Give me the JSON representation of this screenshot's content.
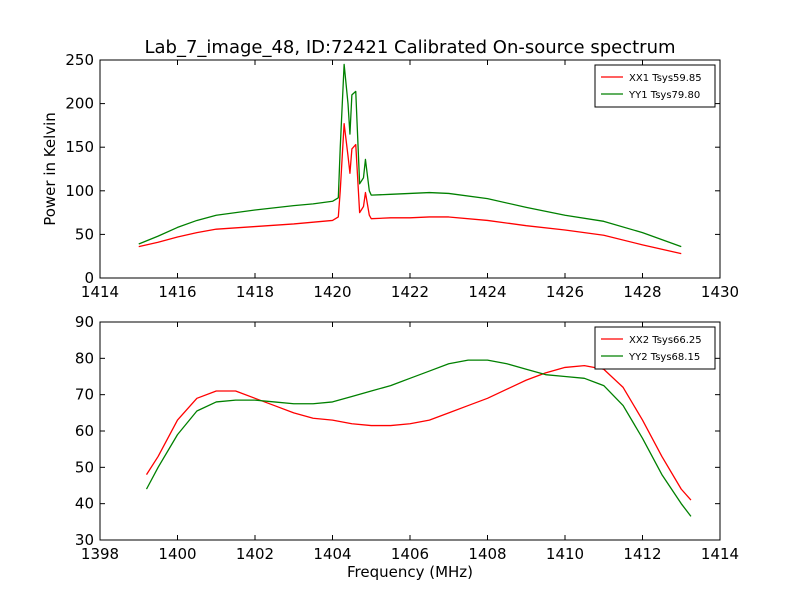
{
  "figure": {
    "title": "Lab_7_image_48, ID:72421 Calibrated On-source spectrum"
  },
  "chart_data": [
    {
      "type": "line",
      "title": "Lab_7_image_48, ID:72421 Calibrated On-source spectrum",
      "xlabel": "",
      "ylabel": "Power in Kelvin",
      "xlim": [
        1414,
        1430
      ],
      "ylim": [
        0,
        250
      ],
      "xticks": [
        1414,
        1416,
        1418,
        1420,
        1422,
        1424,
        1426,
        1428,
        1430
      ],
      "yticks": [
        0,
        50,
        100,
        150,
        200,
        250
      ],
      "grid": false,
      "legend_position": "top-right",
      "series": [
        {
          "name": "XX1 Tsys59.85",
          "color": "#ff0000",
          "points": [
            [
              1415.0,
              36
            ],
            [
              1415.5,
              41
            ],
            [
              1416.0,
              47
            ],
            [
              1416.5,
              52
            ],
            [
              1417.0,
              56
            ],
            [
              1418.0,
              59
            ],
            [
              1419.0,
              62
            ],
            [
              1419.5,
              64
            ],
            [
              1420.0,
              66
            ],
            [
              1420.15,
              70
            ],
            [
              1420.2,
              100
            ],
            [
              1420.3,
              177
            ],
            [
              1420.4,
              140
            ],
            [
              1420.45,
              120
            ],
            [
              1420.5,
              148
            ],
            [
              1420.6,
              153
            ],
            [
              1420.7,
              75
            ],
            [
              1420.8,
              82
            ],
            [
              1420.85,
              98
            ],
            [
              1420.95,
              72
            ],
            [
              1421.0,
              68
            ],
            [
              1421.5,
              69
            ],
            [
              1422.0,
              69
            ],
            [
              1422.5,
              70
            ],
            [
              1423.0,
              70
            ],
            [
              1424.0,
              66
            ],
            [
              1425.0,
              60
            ],
            [
              1426.0,
              55
            ],
            [
              1427.0,
              49
            ],
            [
              1428.0,
              38
            ],
            [
              1429.0,
              28
            ]
          ]
        },
        {
          "name": "YY1 Tsys79.80",
          "color": "#008000",
          "points": [
            [
              1415.0,
              39
            ],
            [
              1415.5,
              48
            ],
            [
              1416.0,
              58
            ],
            [
              1416.5,
              66
            ],
            [
              1417.0,
              72
            ],
            [
              1418.0,
              78
            ],
            [
              1419.0,
              83
            ],
            [
              1419.5,
              85
            ],
            [
              1420.0,
              88
            ],
            [
              1420.15,
              92
            ],
            [
              1420.2,
              150
            ],
            [
              1420.3,
              245
            ],
            [
              1420.4,
              200
            ],
            [
              1420.45,
              165
            ],
            [
              1420.5,
              210
            ],
            [
              1420.6,
              214
            ],
            [
              1420.7,
              108
            ],
            [
              1420.8,
              115
            ],
            [
              1420.85,
              136
            ],
            [
              1420.95,
              100
            ],
            [
              1421.0,
              95
            ],
            [
              1421.5,
              96
            ],
            [
              1422.0,
              97
            ],
            [
              1422.5,
              98
            ],
            [
              1423.0,
              97
            ],
            [
              1424.0,
              91
            ],
            [
              1425.0,
              81
            ],
            [
              1426.0,
              72
            ],
            [
              1427.0,
              65
            ],
            [
              1428.0,
              52
            ],
            [
              1429.0,
              36
            ]
          ]
        }
      ]
    },
    {
      "type": "line",
      "title": "",
      "xlabel": "Frequency (MHz)",
      "ylabel": "",
      "xlim": [
        1398,
        1414
      ],
      "ylim": [
        30,
        90
      ],
      "xticks": [
        1398,
        1400,
        1402,
        1404,
        1406,
        1408,
        1410,
        1412,
        1414
      ],
      "yticks": [
        30,
        40,
        50,
        60,
        70,
        80,
        90
      ],
      "grid": false,
      "legend_position": "top-right",
      "series": [
        {
          "name": "XX2 Tsys66.25",
          "color": "#ff0000",
          "points": [
            [
              1399.2,
              48
            ],
            [
              1399.5,
              53
            ],
            [
              1400.0,
              63
            ],
            [
              1400.5,
              69
            ],
            [
              1401.0,
              71
            ],
            [
              1401.5,
              71
            ],
            [
              1402.0,
              69
            ],
            [
              1402.5,
              67
            ],
            [
              1403.0,
              65
            ],
            [
              1403.5,
              63.5
            ],
            [
              1404.0,
              63
            ],
            [
              1404.5,
              62
            ],
            [
              1405.0,
              61.5
            ],
            [
              1405.5,
              61.5
            ],
            [
              1406.0,
              62
            ],
            [
              1406.5,
              63
            ],
            [
              1407.0,
              65
            ],
            [
              1407.5,
              67
            ],
            [
              1408.0,
              69
            ],
            [
              1408.5,
              71.5
            ],
            [
              1409.0,
              74
            ],
            [
              1409.5,
              76
            ],
            [
              1410.0,
              77.5
            ],
            [
              1410.5,
              78
            ],
            [
              1411.0,
              77
            ],
            [
              1411.5,
              72
            ],
            [
              1412.0,
              63
            ],
            [
              1412.5,
              53
            ],
            [
              1413.0,
              44
            ],
            [
              1413.25,
              41
            ]
          ]
        },
        {
          "name": "YY2 Tsys68.15",
          "color": "#008000",
          "points": [
            [
              1399.2,
              44
            ],
            [
              1399.5,
              50
            ],
            [
              1400.0,
              59
            ],
            [
              1400.5,
              65.5
            ],
            [
              1401.0,
              68
            ],
            [
              1401.5,
              68.5
            ],
            [
              1402.0,
              68.5
            ],
            [
              1402.5,
              68
            ],
            [
              1403.0,
              67.5
            ],
            [
              1403.5,
              67.5
            ],
            [
              1404.0,
              68
            ],
            [
              1404.5,
              69.5
            ],
            [
              1405.0,
              71
            ],
            [
              1405.5,
              72.5
            ],
            [
              1406.0,
              74.5
            ],
            [
              1406.5,
              76.5
            ],
            [
              1407.0,
              78.5
            ],
            [
              1407.5,
              79.5
            ],
            [
              1408.0,
              79.5
            ],
            [
              1408.5,
              78.5
            ],
            [
              1409.0,
              77
            ],
            [
              1409.5,
              75.5
            ],
            [
              1410.0,
              75
            ],
            [
              1410.5,
              74.5
            ],
            [
              1411.0,
              72.5
            ],
            [
              1411.5,
              67
            ],
            [
              1412.0,
              58
            ],
            [
              1412.5,
              48
            ],
            [
              1413.0,
              40
            ],
            [
              1413.25,
              36.5
            ]
          ]
        }
      ]
    }
  ]
}
